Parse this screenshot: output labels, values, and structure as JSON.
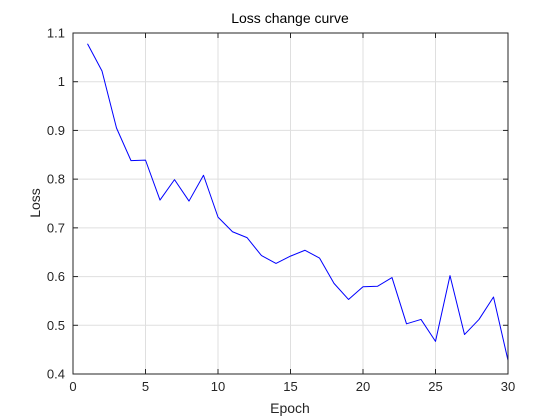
{
  "chart_data": {
    "type": "line",
    "title": "Loss change curve",
    "xlabel": "Epoch",
    "ylabel": "Loss",
    "xlim": [
      0,
      30
    ],
    "ylim": [
      0.4,
      1.1
    ],
    "x_ticks": [
      0,
      5,
      10,
      15,
      20,
      25,
      30
    ],
    "y_ticks": [
      0.4,
      0.5,
      0.6,
      0.7,
      0.8,
      0.9,
      1.0,
      1.1
    ],
    "y_tick_labels": [
      "0.4",
      "0.5",
      "0.6",
      "0.7",
      "0.8",
      "0.9",
      "1",
      "1.1"
    ],
    "grid": true,
    "box": true,
    "series": [
      {
        "color": "#0000ff",
        "x": [
          1,
          2,
          3,
          4,
          5,
          6,
          7,
          8,
          9,
          10,
          11,
          12,
          13,
          14,
          15,
          16,
          17,
          18,
          19,
          20,
          21,
          22,
          23,
          24,
          25,
          26,
          27,
          28,
          29,
          30
        ],
        "y": [
          1.078,
          1.022,
          0.905,
          0.838,
          0.839,
          0.757,
          0.799,
          0.755,
          0.808,
          0.722,
          0.692,
          0.68,
          0.643,
          0.627,
          0.642,
          0.654,
          0.638,
          0.586,
          0.553,
          0.579,
          0.58,
          0.598,
          0.503,
          0.512,
          0.467,
          0.602,
          0.481,
          0.512,
          0.558,
          0.428
        ]
      }
    ]
  },
  "colors": {
    "line": "#0000ff",
    "grid": "#dfdfdf",
    "axis": "#262626",
    "background": "#ffffff"
  }
}
